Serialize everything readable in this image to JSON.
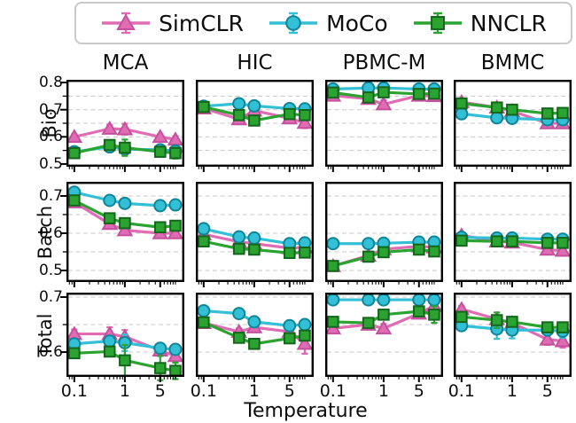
{
  "legend": {
    "items": [
      {
        "label": "SimCLR",
        "marker": "triangle",
        "color": "#e06cb4",
        "edge": "#c5519e"
      },
      {
        "label": "MoCo",
        "marker": "circle",
        "color": "#33c0d6",
        "edge": "#0f8598"
      },
      {
        "label": "NNCLR",
        "marker": "square",
        "color": "#2ba330",
        "edge": "#14661c"
      }
    ]
  },
  "chart_data": {
    "type": "line",
    "xscale": "log",
    "x": [
      0.1,
      0.5,
      1,
      5,
      10
    ],
    "xlabel": "Temperature",
    "xtick_values": [
      0.1,
      1,
      5
    ],
    "xtick_labels": [
      "0.1",
      "1",
      "5"
    ],
    "columns": [
      "MCA",
      "HIC",
      "PBMC-M",
      "BMMC"
    ],
    "rows": [
      {
        "label": "Bio",
        "ylim": [
          0.49,
          0.81
        ],
        "yticks": [
          0.8,
          0.7,
          0.6,
          0.5
        ]
      },
      {
        "label": "Batch",
        "ylim": [
          0.469,
          0.738
        ],
        "yticks": [
          0.7,
          0.6,
          0.5
        ]
      },
      {
        "label": "Total",
        "ylim": [
          0.555,
          0.708
        ],
        "yticks": [
          0.7,
          0.6
        ]
      }
    ],
    "series_names": [
      "SimCLR",
      "MoCo",
      "NNCLR"
    ],
    "grid_color": "#c8c8c8",
    "axis_color": "#000000",
    "grid_step": 0.05,
    "legend_position": "top",
    "cells": [
      {
        "row": "Bio",
        "col": "MCA",
        "series": [
          {
            "name": "SimCLR",
            "values": [
              0.6,
              0.63,
              0.628,
              0.6,
              0.59
            ],
            "errors": [
              0.01,
              0.014,
              0.02,
              0.01,
              0.012
            ]
          },
          {
            "name": "MoCo",
            "values": [
              0.545,
              0.563,
              0.555,
              0.552,
              0.548
            ],
            "errors": [
              0.008,
              0.006,
              0.006,
              0.006,
              0.012
            ]
          },
          {
            "name": "NNCLR",
            "values": [
              0.54,
              0.57,
              0.56,
              0.545,
              0.54
            ],
            "errors": [
              0.008,
              0.008,
              0.03,
              0.012,
              0.02
            ]
          }
        ]
      },
      {
        "row": "Bio",
        "col": "HIC",
        "series": [
          {
            "name": "SimCLR",
            "values": [
              0.705,
              0.665,
              0.697,
              0.668,
              0.652
            ],
            "errors": [
              0.006,
              0.008,
              0.006,
              0.006,
              0.02
            ]
          },
          {
            "name": "MoCo",
            "values": [
              0.713,
              0.722,
              0.714,
              0.704,
              0.703
            ],
            "errors": [
              0.006,
              0.008,
              0.006,
              0.006,
              0.008
            ]
          },
          {
            "name": "NNCLR",
            "values": [
              0.71,
              0.68,
              0.66,
              0.684,
              0.68
            ],
            "errors": [
              0.006,
              0.008,
              0.008,
              0.006,
              0.008
            ]
          }
        ]
      },
      {
        "row": "Bio",
        "col": "PBMC-M",
        "series": [
          {
            "name": "SimCLR",
            "values": [
              0.752,
              0.74,
              0.72,
              0.752,
              0.75
            ],
            "errors": [
              0.005,
              0.005,
              0.015,
              0.005,
              0.005
            ]
          },
          {
            "name": "MoCo",
            "values": [
              0.776,
              0.78,
              0.78,
              0.776,
              0.776
            ],
            "errors": [
              0.004,
              0.004,
              0.004,
              0.004,
              0.004
            ]
          },
          {
            "name": "NNCLR",
            "values": [
              0.763,
              0.745,
              0.764,
              0.758,
              0.759
            ],
            "errors": [
              0.005,
              0.01,
              0.005,
              0.006,
              0.012
            ]
          }
        ]
      },
      {
        "row": "Bio",
        "col": "BMMC",
        "series": [
          {
            "name": "SimCLR",
            "values": [
              0.728,
              0.708,
              0.695,
              0.65,
              0.65
            ],
            "errors": [
              0.01,
              0.006,
              0.006,
              0.008,
              0.008
            ]
          },
          {
            "name": "MoCo",
            "values": [
              0.685,
              0.67,
              0.668,
              0.663,
              0.663
            ],
            "errors": [
              0.006,
              0.006,
              0.006,
              0.006,
              0.006
            ]
          },
          {
            "name": "NNCLR",
            "values": [
              0.723,
              0.708,
              0.7,
              0.686,
              0.688
            ],
            "errors": [
              0.008,
              0.008,
              0.006,
              0.006,
              0.006
            ]
          }
        ]
      },
      {
        "row": "Batch",
        "col": "MCA",
        "series": [
          {
            "name": "SimCLR",
            "values": [
              0.683,
              0.625,
              0.608,
              0.6,
              0.6
            ],
            "errors": [
              0.006,
              0.008,
              0.008,
              0.006,
              0.006
            ]
          },
          {
            "name": "MoCo",
            "values": [
              0.71,
              0.688,
              0.68,
              0.674,
              0.676
            ],
            "errors": [
              0.006,
              0.006,
              0.006,
              0.005,
              0.005
            ]
          },
          {
            "name": "NNCLR",
            "values": [
              0.688,
              0.64,
              0.627,
              0.616,
              0.62
            ],
            "errors": [
              0.006,
              0.008,
              0.008,
              0.006,
              0.006
            ]
          }
        ]
      },
      {
        "row": "Batch",
        "col": "HIC",
        "series": [
          {
            "name": "SimCLR",
            "values": [
              0.597,
              0.577,
              0.572,
              0.56,
              0.562
            ],
            "errors": [
              0.005,
              0.005,
              0.005,
              0.005,
              0.005
            ]
          },
          {
            "name": "MoCo",
            "values": [
              0.612,
              0.59,
              0.587,
              0.572,
              0.574
            ],
            "errors": [
              0.006,
              0.006,
              0.006,
              0.006,
              0.006
            ]
          },
          {
            "name": "NNCLR",
            "values": [
              0.578,
              0.558,
              0.556,
              0.547,
              0.548
            ],
            "errors": [
              0.005,
              0.005,
              0.005,
              0.005,
              0.005
            ]
          }
        ]
      },
      {
        "row": "Batch",
        "col": "PBMC-M",
        "series": [
          {
            "name": "SimCLR",
            "values": [
              0.512,
              0.54,
              0.557,
              0.565,
              0.562
            ],
            "errors": [
              0.005,
              0.005,
              0.005,
              0.005,
              0.005
            ]
          },
          {
            "name": "MoCo",
            "values": [
              0.572,
              0.572,
              0.573,
              0.576,
              0.576
            ],
            "errors": [
              0.004,
              0.004,
              0.004,
              0.004,
              0.004
            ]
          },
          {
            "name": "NNCLR",
            "values": [
              0.512,
              0.537,
              0.549,
              0.556,
              0.551
            ],
            "errors": [
              0.005,
              0.005,
              0.005,
              0.005,
              0.005
            ]
          }
        ]
      },
      {
        "row": "Batch",
        "col": "BMMC",
        "series": [
          {
            "name": "SimCLR",
            "values": [
              0.594,
              0.578,
              0.575,
              0.556,
              0.553
            ],
            "errors": [
              0.008,
              0.005,
              0.005,
              0.006,
              0.006
            ]
          },
          {
            "name": "MoCo",
            "values": [
              0.589,
              0.587,
              0.587,
              0.584,
              0.584
            ],
            "errors": [
              0.005,
              0.005,
              0.005,
              0.005,
              0.005
            ]
          },
          {
            "name": "NNCLR",
            "values": [
              0.58,
              0.578,
              0.578,
              0.574,
              0.574
            ],
            "errors": [
              0.005,
              0.005,
              0.005,
              0.005,
              0.005
            ]
          }
        ]
      },
      {
        "row": "Total",
        "col": "MCA",
        "series": [
          {
            "name": "SimCLR",
            "values": [
              0.633,
              0.633,
              0.628,
              0.603,
              0.593
            ],
            "errors": [
              0.008,
              0.012,
              0.012,
              0.008,
              0.008
            ]
          },
          {
            "name": "MoCo",
            "values": [
              0.615,
              0.62,
              0.617,
              0.607,
              0.605
            ],
            "errors": [
              0.006,
              0.008,
              0.015,
              0.006,
              0.006
            ]
          },
          {
            "name": "NNCLR",
            "values": [
              0.598,
              0.601,
              0.585,
              0.571,
              0.566
            ],
            "errors": [
              0.008,
              0.008,
              0.028,
              0.022,
              0.015
            ]
          }
        ]
      },
      {
        "row": "Total",
        "col": "HIC",
        "series": [
          {
            "name": "SimCLR",
            "values": [
              0.653,
              0.637,
              0.645,
              0.637,
              0.615
            ],
            "errors": [
              0.006,
              0.006,
              0.006,
              0.006,
              0.018
            ]
          },
          {
            "name": "MoCo",
            "values": [
              0.675,
              0.67,
              0.655,
              0.648,
              0.65
            ],
            "errors": [
              0.006,
              0.006,
              0.006,
              0.006,
              0.006
            ]
          },
          {
            "name": "NNCLR",
            "values": [
              0.654,
              0.626,
              0.615,
              0.625,
              0.63
            ],
            "errors": [
              0.006,
              0.006,
              0.006,
              0.006,
              0.006
            ]
          }
        ]
      },
      {
        "row": "Total",
        "col": "PBMC-M",
        "series": [
          {
            "name": "SimCLR",
            "values": [
              0.643,
              0.65,
              0.643,
              0.67,
              0.684
            ],
            "errors": [
              0.006,
              0.005,
              0.008,
              0.005,
              0.005
            ]
          },
          {
            "name": "MoCo",
            "values": [
              0.695,
              0.695,
              0.695,
              0.695,
              0.695
            ],
            "errors": [
              0.004,
              0.004,
              0.004,
              0.004,
              0.004
            ]
          },
          {
            "name": "NNCLR",
            "values": [
              0.655,
              0.653,
              0.668,
              0.674,
              0.668
            ],
            "errors": [
              0.005,
              0.008,
              0.005,
              0.005,
              0.015
            ]
          }
        ]
      },
      {
        "row": "Total",
        "col": "BMMC",
        "series": [
          {
            "name": "SimCLR",
            "values": [
              0.678,
              0.66,
              0.653,
              0.623,
              0.62
            ],
            "errors": [
              0.006,
              0.005,
              0.005,
              0.01,
              0.012
            ]
          },
          {
            "name": "MoCo",
            "values": [
              0.648,
              0.642,
              0.64,
              0.64,
              0.638
            ],
            "errors": [
              0.005,
              0.018,
              0.015,
              0.005,
              0.012
            ]
          },
          {
            "name": "NNCLR",
            "values": [
              0.664,
              0.658,
              0.655,
              0.645,
              0.645
            ],
            "errors": [
              0.006,
              0.014,
              0.006,
              0.006,
              0.006
            ]
          }
        ]
      }
    ]
  }
}
